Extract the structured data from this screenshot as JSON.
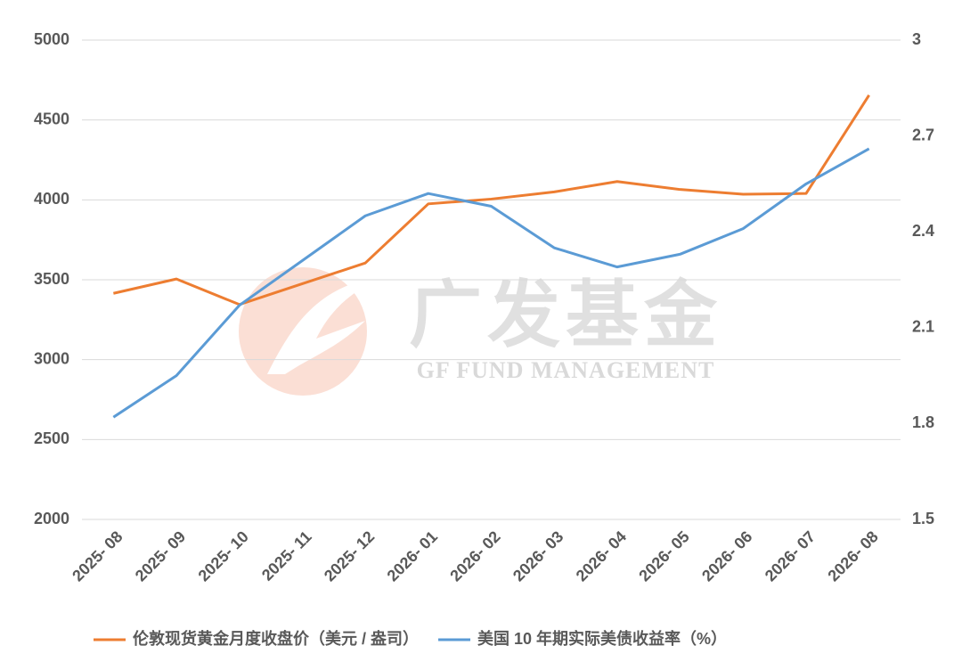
{
  "chart_data": {
    "type": "line",
    "categories": [
      "2025- 08",
      "2025- 09",
      "2025- 10",
      "2025- 11",
      "2025- 12",
      "2026- 01",
      "2026- 02",
      "2026- 03",
      "2026- 04",
      "2026- 05",
      "2026- 06",
      "2026- 07",
      "2026- 08"
    ],
    "series": [
      {
        "name": "伦敦现货黄金月度收盘价（美元 / 盎司）",
        "color": "#ed7d31",
        "values": [
          3415,
          3505,
          3345,
          3475,
          3605,
          3975,
          4005,
          4050,
          4115,
          4065,
          4035,
          4040,
          4655
        ]
      },
      {
        "name": "美国 10 年期实际美债收益率（%）",
        "color": "#5b9bd5",
        "axis": "y2",
        "values": [
          1.82,
          1.95,
          2.17,
          2.31,
          2.45,
          2.52,
          2.48,
          2.35,
          2.29,
          2.33,
          2.41,
          2.55,
          2.66
        ]
      }
    ],
    "ylim": [
      2000,
      5000
    ],
    "yticks": [
      2000,
      2500,
      3000,
      3500,
      4000,
      4500,
      5000
    ],
    "y2lim": [
      1.5,
      3
    ],
    "y2ticks": [
      1.5,
      1.8,
      2.1,
      2.4,
      2.7,
      3
    ],
    "grid": true,
    "legend": "bottom",
    "watermark": [
      "广发基金",
      "GF FUND MANAGEMENT"
    ]
  }
}
